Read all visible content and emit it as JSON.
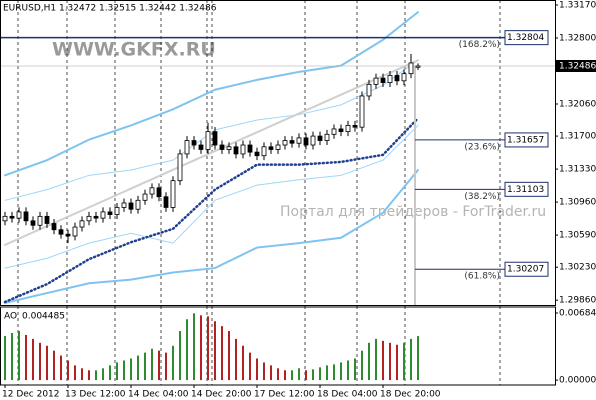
{
  "chart_data": [
    {
      "type": "candlestick",
      "title": "EURUSD,H1 1.32472 1.32515 1.32442 1.32486",
      "watermark": "WWW.GKFX.RU",
      "watermark2": "Портал для трейдеров - ForTrader.ru",
      "categories": [
        "12 Dec 2012",
        null,
        null,
        null,
        null,
        null,
        null,
        null,
        null,
        "13 Dec 12:00",
        null,
        null,
        null,
        null,
        null,
        null,
        null,
        null,
        "14 Dec 04:00",
        null,
        null,
        null,
        null,
        null,
        null,
        null,
        null,
        "14 Dec 20:00",
        null,
        null,
        null,
        null,
        null,
        null,
        null,
        null,
        "17 Dec 12:00",
        null,
        null,
        null,
        null,
        null,
        null,
        null,
        null,
        "18 Dec 04:00",
        null,
        null,
        null,
        null,
        null,
        null,
        null,
        null,
        "18 Dec 20:00",
        null,
        null,
        null,
        null,
        null
      ],
      "open": [
        1.3075,
        1.308,
        1.3078,
        1.3085,
        1.3075,
        1.307,
        1.308,
        1.3072,
        1.3065,
        1.306,
        1.3058,
        1.3068,
        1.3075,
        1.308,
        1.3078,
        1.3085,
        1.3082,
        1.309,
        1.3095,
        1.3088,
        1.3098,
        1.3105,
        1.3112,
        1.3102,
        1.309,
        1.312,
        1.315,
        1.3165,
        1.316,
        1.3155,
        1.3175,
        1.316,
        1.3155,
        1.3158,
        1.315,
        1.316,
        1.3152,
        1.3148,
        1.3158,
        1.3155,
        1.316,
        1.3165,
        1.3162,
        1.3168,
        1.316,
        1.317,
        1.3165,
        1.3172,
        1.3178,
        1.3175,
        1.3182,
        1.318,
        1.3215,
        1.3228,
        1.3235,
        1.323,
        1.3238,
        1.3232,
        1.324,
        1.32472
      ],
      "high": [
        1.3085,
        1.3085,
        1.309,
        1.309,
        1.308,
        1.3085,
        1.3085,
        1.3077,
        1.307,
        1.3065,
        1.3073,
        1.308,
        1.3085,
        1.3085,
        1.309,
        1.309,
        1.3095,
        1.31,
        1.31,
        1.3103,
        1.311,
        1.3117,
        1.3117,
        1.3107,
        1.3125,
        1.3155,
        1.317,
        1.317,
        1.3165,
        1.3185,
        1.318,
        1.3165,
        1.3163,
        1.3163,
        1.3165,
        1.3165,
        1.3157,
        1.3163,
        1.3163,
        1.3165,
        1.317,
        1.317,
        1.3173,
        1.3173,
        1.3175,
        1.3175,
        1.3177,
        1.3183,
        1.3183,
        1.3187,
        1.3187,
        1.322,
        1.3233,
        1.324,
        1.324,
        1.3243,
        1.3243,
        1.3245,
        1.3262,
        1.32515
      ],
      "low": [
        1.307,
        1.3073,
        1.3073,
        1.307,
        1.3065,
        1.3065,
        1.3067,
        1.306,
        1.3055,
        1.305,
        1.3053,
        1.3063,
        1.307,
        1.3073,
        1.3073,
        1.3077,
        1.3077,
        1.3085,
        1.3083,
        1.3083,
        1.3093,
        1.31,
        1.3097,
        1.3085,
        1.3085,
        1.3115,
        1.3145,
        1.3155,
        1.315,
        1.315,
        1.3155,
        1.315,
        1.315,
        1.3145,
        1.3145,
        1.3147,
        1.3143,
        1.3143,
        1.315,
        1.315,
        1.3155,
        1.3157,
        1.3157,
        1.3155,
        1.3155,
        1.316,
        1.316,
        1.3167,
        1.317,
        1.317,
        1.3175,
        1.3175,
        1.321,
        1.3223,
        1.3225,
        1.3225,
        1.3227,
        1.3227,
        1.3235,
        1.32442
      ],
      "close": [
        1.308,
        1.3078,
        1.3085,
        1.3075,
        1.307,
        1.308,
        1.3072,
        1.3065,
        1.306,
        1.3058,
        1.3068,
        1.3075,
        1.308,
        1.3078,
        1.3085,
        1.3082,
        1.309,
        1.3095,
        1.3088,
        1.3098,
        1.3105,
        1.3112,
        1.3102,
        1.309,
        1.312,
        1.315,
        1.3165,
        1.316,
        1.3155,
        1.3175,
        1.316,
        1.3155,
        1.3158,
        1.315,
        1.316,
        1.3152,
        1.3148,
        1.3158,
        1.3155,
        1.316,
        1.3165,
        1.3162,
        1.3168,
        1.316,
        1.317,
        1.3165,
        1.3172,
        1.3178,
        1.3175,
        1.3182,
        1.318,
        1.3215,
        1.3228,
        1.3235,
        1.323,
        1.3238,
        1.3232,
        1.324,
        1.3252,
        1.32486
      ],
      "ylim": [
        1.29806,
        1.33226
      ],
      "yticks": [
        {
          "value": 1.3317,
          "label": "1.33170"
        },
        {
          "value": 1.328,
          "label": "1.32800"
        },
        {
          "value": 1.3206,
          "label": "1.32060"
        },
        {
          "value": 1.317,
          "label": "1.31700"
        },
        {
          "value": 1.3133,
          "label": "1.31330"
        },
        {
          "value": 1.3096,
          "label": "1.30960"
        },
        {
          "value": 1.3059,
          "label": "1.30590"
        },
        {
          "value": 1.3023,
          "label": "1.30230"
        },
        {
          "value": 1.2986,
          "label": "1.29860"
        }
      ],
      "indicators": [
        {
          "color": "#7ec4ef",
          "x": [
            0,
            6,
            12,
            18,
            24,
            30,
            36,
            42,
            48,
            54,
            59
          ],
          "values": [
            1.3126,
            1.3143,
            1.3166,
            1.3182,
            1.32,
            1.3222,
            1.3233,
            1.3242,
            1.3249,
            1.3278,
            1.3309
          ]
        },
        {
          "color": "#7ec4ef",
          "x": [
            0,
            6,
            12,
            18,
            24,
            30,
            36,
            42,
            48,
            54,
            59
          ],
          "values": [
            1.2983,
            1.2994,
            1.3005,
            1.3009,
            1.3017,
            1.3022,
            1.3045,
            1.305,
            1.3056,
            1.3084,
            1.3132
          ]
        },
        {
          "color": "#9fd6f7",
          "x": [
            0,
            6,
            12,
            18,
            24,
            30,
            36,
            42,
            48,
            54,
            59
          ],
          "values": [
            1.3098,
            1.311,
            1.3126,
            1.3132,
            1.3143,
            1.3177,
            1.3188,
            1.3194,
            1.3205,
            1.3227,
            1.3255
          ]
        },
        {
          "color": "#9fd6f7",
          "x": [
            0,
            6,
            12,
            18,
            24,
            30,
            36,
            42,
            48,
            54,
            59
          ],
          "values": [
            1.3022,
            1.3033,
            1.305,
            1.3061,
            1.305,
            1.3098,
            1.3115,
            1.3121,
            1.3126,
            1.3143,
            1.3182
          ]
        },
        {
          "color": "#1f3f8f",
          "dotted": true,
          "x": [
            0,
            6,
            12,
            18,
            24,
            30,
            36,
            42,
            48,
            54,
            59
          ],
          "values": [
            1.2984,
            1.3004,
            1.3032,
            1.3051,
            1.3066,
            1.311,
            1.3138,
            1.3138,
            1.3141,
            1.3149,
            1.319
          ]
        },
        {
          "color": "#cfcfcf",
          "x": [
            0,
            59
          ],
          "values": [
            1.3048,
            1.3255
          ]
        }
      ],
      "fib_levels": [
        {
          "value": 1.32804,
          "label": "(168.2%)",
          "extend": true
        },
        {
          "value": 1.31657,
          "label": "(23.6%)"
        },
        {
          "value": 1.31103,
          "label": "(38.2%)"
        },
        {
          "value": 1.30207,
          "label": "(61.8%)"
        }
      ]
    },
    {
      "type": "bar",
      "title": "AO",
      "values": [
        0.0045,
        0.0048,
        0.005,
        0.0046,
        0.0042,
        0.0038,
        0.0035,
        0.003,
        0.0025,
        0.002,
        0.0015,
        0.0012,
        0.001,
        0.001,
        0.0012,
        0.0015,
        0.0018,
        0.002,
        0.0022,
        0.0025,
        0.0028,
        0.0032,
        0.003,
        0.0028,
        0.0035,
        0.005,
        0.0062,
        0.0068,
        0.0066,
        0.0065,
        0.006,
        0.0055,
        0.005,
        0.0042,
        0.0035,
        0.0028,
        0.0022,
        0.0018,
        0.0015,
        0.0012,
        0.001,
        0.001,
        0.0012,
        0.001,
        0.0011,
        0.0013,
        0.0015,
        0.0016,
        0.0018,
        0.002,
        0.0022,
        0.003,
        0.0038,
        0.0042,
        0.004,
        0.0038,
        0.0036,
        0.0038,
        0.0042,
        0.004485
      ],
      "ylim": [
        -0.0005,
        0.00745
      ],
      "yticks": [
        {
          "value": 0.00684,
          "label": "0.00684"
        },
        {
          "value": 0,
          "label": "0.00000"
        }
      ],
      "up_color": "#2e8b2e",
      "down_color": "#b22222"
    }
  ]
}
